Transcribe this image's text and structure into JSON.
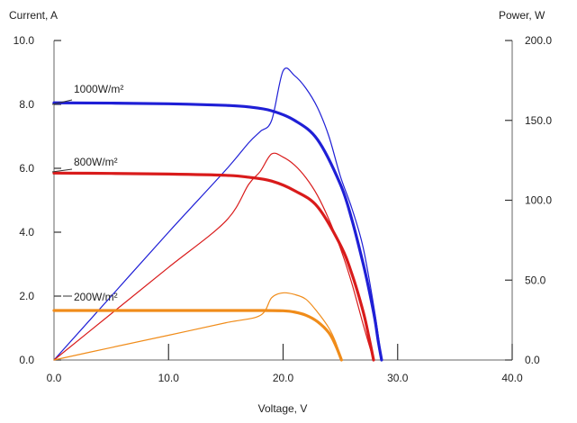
{
  "chart_data": {
    "type": "line",
    "title": "",
    "xlabel": "Voltage, V",
    "ylabel_left": "Current, A",
    "ylabel_right": "Power, W",
    "xlim": [
      0,
      40
    ],
    "ylim_left": [
      0,
      10
    ],
    "ylim_right": [
      0,
      200
    ],
    "grid": false,
    "x_ticks": [
      "0.0",
      "10.0",
      "20.0",
      "30.0",
      "40.0"
    ],
    "y_left_ticks": [
      "0.0",
      "2.0",
      "4.0",
      "6.0",
      "8.0",
      "10.0"
    ],
    "y_right_ticks": [
      "0.0",
      "50.0",
      "100.0",
      "150.0",
      "200.0"
    ],
    "series": [
      {
        "name": "1000W/m²",
        "color": "#1f1fd6",
        "current": {
          "axis": "left",
          "x": [
            0,
            5,
            10,
            15,
            17,
            19,
            21,
            23,
            25,
            26,
            27,
            27.5,
            28,
            28.3,
            28.6
          ],
          "y": [
            8.05,
            8.04,
            8.02,
            7.97,
            7.92,
            7.8,
            7.5,
            6.9,
            5.5,
            4.4,
            3.0,
            2.2,
            1.3,
            0.6,
            0
          ]
        },
        "power": {
          "axis": "right",
          "x": [
            0,
            5,
            10,
            15,
            17,
            18,
            19,
            20,
            21,
            22,
            23,
            24,
            25,
            26,
            27,
            28,
            28.6
          ],
          "y": [
            0,
            40,
            80,
            119,
            136,
            143,
            150,
            181,
            178,
            170,
            158,
            140,
            115,
            95,
            70,
            30,
            0
          ]
        }
      },
      {
        "name": "800W/m²",
        "color": "#d91b1b",
        "current": {
          "axis": "left",
          "x": [
            0,
            5,
            10,
            15,
            17,
            19,
            21,
            23,
            25,
            26,
            27,
            27.5,
            27.9
          ],
          "y": [
            5.85,
            5.84,
            5.82,
            5.78,
            5.72,
            5.6,
            5.3,
            4.8,
            3.6,
            2.7,
            1.5,
            0.7,
            0
          ]
        },
        "power": {
          "axis": "right",
          "x": [
            0,
            5,
            10,
            15,
            17,
            18,
            19,
            20,
            21,
            22,
            23,
            24,
            25,
            26,
            27,
            27.9
          ],
          "y": [
            0,
            29,
            58,
            87,
            110,
            118,
            129,
            127,
            122,
            114,
            103,
            88,
            70,
            48,
            22,
            0
          ]
        }
      },
      {
        "name": "200W/m²",
        "color": "#f08c1a",
        "current": {
          "axis": "left",
          "x": [
            0,
            5,
            10,
            15,
            18,
            20,
            21,
            22,
            23,
            24,
            24.6,
            25.1
          ],
          "y": [
            1.55,
            1.55,
            1.55,
            1.55,
            1.55,
            1.54,
            1.5,
            1.4,
            1.2,
            0.85,
            0.45,
            0
          ]
        },
        "power": {
          "axis": "right",
          "x": [
            0,
            5,
            10,
            15,
            18,
            19,
            20,
            21,
            22,
            23,
            24,
            24.6,
            25.1
          ],
          "y": [
            0,
            7.8,
            15.5,
            23.3,
            27.9,
            39,
            42,
            41,
            38,
            30,
            20,
            11,
            0
          ]
        }
      }
    ]
  }
}
